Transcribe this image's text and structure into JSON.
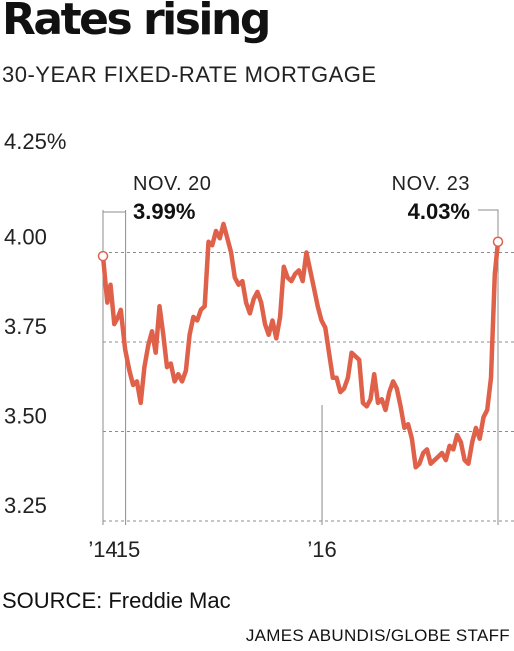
{
  "header": {
    "title": "Rates rising",
    "subtitle": "30-YEAR FIXED-RATE MORTGAGE"
  },
  "footer": {
    "source": "SOURCE: Freddie Mac",
    "credit": "JAMES ABUNDIS/GLOBE STAFF"
  },
  "colors": {
    "line": "#e0614a",
    "grid": "#8c8c8c",
    "marker_fill": "#ffffff"
  },
  "chart_data": {
    "type": "line",
    "title": "Rates rising",
    "subtitle": "30-YEAR FIXED-RATE MORTGAGE",
    "xlabel": "",
    "ylabel": "",
    "ylim": [
      3.25,
      4.25
    ],
    "y_ticks": [
      {
        "value": 4.25,
        "label": "4.25%"
      },
      {
        "value": 4.0,
        "label": "4.00"
      },
      {
        "value": 3.75,
        "label": "3.75"
      },
      {
        "value": 3.5,
        "label": "3.50"
      },
      {
        "value": 3.25,
        "label": "3.25"
      }
    ],
    "x_ticks": [
      {
        "date": "2014-11-20",
        "label": "’14"
      },
      {
        "date": "2015-01-01",
        "label": "’15"
      },
      {
        "date": "2016-01-01",
        "label": "’16"
      }
    ],
    "grid": "horizontal dashed",
    "annotations": [
      {
        "date": "2014-11-20",
        "date_label": "NOV. 20",
        "value_label": "3.99%",
        "value": 3.99
      },
      {
        "date": "2016-11-23",
        "date_label": "NOV. 23",
        "value_label": "4.03%",
        "value": 4.03
      }
    ],
    "series": [
      {
        "values": [
          [
            "2014-11-20",
            3.99
          ],
          [
            "2014-11-28",
            3.86
          ],
          [
            "2014-12-04",
            3.91
          ],
          [
            "2014-12-11",
            3.8
          ],
          [
            "2014-12-18",
            3.82
          ],
          [
            "2014-12-23",
            3.84
          ],
          [
            "2014-12-31",
            3.73
          ],
          [
            "2015-01-08",
            3.67
          ],
          [
            "2015-01-15",
            3.63
          ],
          [
            "2015-01-22",
            3.64
          ],
          [
            "2015-01-29",
            3.58
          ],
          [
            "2015-02-05",
            3.68
          ],
          [
            "2015-02-12",
            3.74
          ],
          [
            "2015-02-19",
            3.78
          ],
          [
            "2015-02-26",
            3.72
          ],
          [
            "2015-03-05",
            3.85
          ],
          [
            "2015-03-12",
            3.77
          ],
          [
            "2015-03-19",
            3.68
          ],
          [
            "2015-03-26",
            3.69
          ],
          [
            "2015-04-02",
            3.64
          ],
          [
            "2015-04-09",
            3.66
          ],
          [
            "2015-04-16",
            3.64
          ],
          [
            "2015-04-23",
            3.67
          ],
          [
            "2015-04-30",
            3.77
          ],
          [
            "2015-05-07",
            3.82
          ],
          [
            "2015-05-14",
            3.81
          ],
          [
            "2015-05-21",
            3.84
          ],
          [
            "2015-05-28",
            3.85
          ],
          [
            "2015-06-04",
            4.03
          ],
          [
            "2015-06-11",
            4.02
          ],
          [
            "2015-06-18",
            4.06
          ],
          [
            "2015-06-25",
            4.04
          ],
          [
            "2015-07-02",
            4.08
          ],
          [
            "2015-07-09",
            4.04
          ],
          [
            "2015-07-16",
            4.0
          ],
          [
            "2015-07-23",
            3.93
          ],
          [
            "2015-07-30",
            3.91
          ],
          [
            "2015-08-06",
            3.92
          ],
          [
            "2015-08-13",
            3.86
          ],
          [
            "2015-08-20",
            3.83
          ],
          [
            "2015-08-27",
            3.87
          ],
          [
            "2015-09-03",
            3.89
          ],
          [
            "2015-09-10",
            3.86
          ],
          [
            "2015-09-17",
            3.8
          ],
          [
            "2015-09-24",
            3.77
          ],
          [
            "2015-10-01",
            3.81
          ],
          [
            "2015-10-08",
            3.76
          ],
          [
            "2015-10-15",
            3.82
          ],
          [
            "2015-10-22",
            3.96
          ],
          [
            "2015-10-29",
            3.93
          ],
          [
            "2015-11-05",
            3.92
          ],
          [
            "2015-11-12",
            3.94
          ],
          [
            "2015-11-19",
            3.95
          ],
          [
            "2015-11-26",
            3.92
          ],
          [
            "2015-12-03",
            4.0
          ],
          [
            "2015-12-10",
            3.95
          ],
          [
            "2015-12-17",
            3.9
          ],
          [
            "2015-12-24",
            3.85
          ],
          [
            "2015-12-31",
            3.81
          ],
          [
            "2016-01-07",
            3.79
          ],
          [
            "2016-01-14",
            3.72
          ],
          [
            "2016-01-21",
            3.65
          ],
          [
            "2016-01-28",
            3.65
          ],
          [
            "2016-02-04",
            3.61
          ],
          [
            "2016-02-11",
            3.62
          ],
          [
            "2016-02-18",
            3.65
          ],
          [
            "2016-02-25",
            3.72
          ],
          [
            "2016-03-03",
            3.71
          ],
          [
            "2016-03-10",
            3.7
          ],
          [
            "2016-03-17",
            3.58
          ],
          [
            "2016-03-24",
            3.57
          ],
          [
            "2016-03-31",
            3.59
          ],
          [
            "2016-04-07",
            3.66
          ],
          [
            "2016-04-14",
            3.58
          ],
          [
            "2016-04-21",
            3.59
          ],
          [
            "2016-04-28",
            3.56
          ],
          [
            "2016-05-05",
            3.61
          ],
          [
            "2016-05-12",
            3.64
          ],
          [
            "2016-05-19",
            3.62
          ],
          [
            "2016-05-26",
            3.57
          ],
          [
            "2016-06-02",
            3.51
          ],
          [
            "2016-06-09",
            3.52
          ],
          [
            "2016-06-16",
            3.48
          ],
          [
            "2016-06-23",
            3.4
          ],
          [
            "2016-06-30",
            3.41
          ],
          [
            "2016-07-07",
            3.44
          ],
          [
            "2016-07-14",
            3.45
          ],
          [
            "2016-07-21",
            3.41
          ],
          [
            "2016-07-28",
            3.42
          ],
          [
            "2016-08-04",
            3.43
          ],
          [
            "2016-08-11",
            3.44
          ],
          [
            "2016-08-18",
            3.42
          ],
          [
            "2016-08-25",
            3.46
          ],
          [
            "2016-09-01",
            3.45
          ],
          [
            "2016-09-08",
            3.49
          ],
          [
            "2016-09-15",
            3.47
          ],
          [
            "2016-09-22",
            3.42
          ],
          [
            "2016-09-29",
            3.41
          ],
          [
            "2016-10-06",
            3.47
          ],
          [
            "2016-10-13",
            3.51
          ],
          [
            "2016-10-20",
            3.48
          ],
          [
            "2016-10-27",
            3.54
          ],
          [
            "2016-11-03",
            3.56
          ],
          [
            "2016-11-10",
            3.65
          ],
          [
            "2016-11-17",
            3.94
          ],
          [
            "2016-11-23",
            4.03
          ]
        ]
      }
    ]
  }
}
